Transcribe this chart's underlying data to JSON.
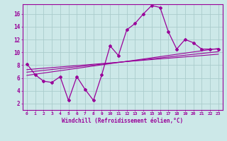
{
  "xlabel": "Windchill (Refroidissement éolien,°C)",
  "bg_color": "#cce8e8",
  "grid_color": "#aacccc",
  "line_color": "#990099",
  "xlim": [
    -0.5,
    23.5
  ],
  "ylim": [
    1,
    17.5
  ],
  "yticks": [
    2,
    4,
    6,
    8,
    10,
    12,
    14,
    16
  ],
  "xticks": [
    0,
    1,
    2,
    3,
    4,
    5,
    6,
    7,
    8,
    9,
    10,
    11,
    12,
    13,
    14,
    15,
    16,
    17,
    18,
    19,
    20,
    21,
    22,
    23
  ],
  "main_line_x": [
    0,
    1,
    2,
    3,
    4,
    5,
    6,
    7,
    8,
    9,
    10,
    11,
    12,
    13,
    14,
    15,
    16,
    17,
    18,
    19,
    20,
    21,
    22,
    23
  ],
  "main_line_y": [
    8.2,
    6.5,
    5.5,
    5.3,
    6.2,
    2.5,
    6.2,
    4.2,
    2.5,
    6.5,
    11.0,
    9.5,
    13.5,
    14.5,
    16.0,
    17.3,
    17.0,
    13.2,
    10.5,
    12.0,
    11.5,
    10.5,
    10.5,
    10.5
  ],
  "line2_x": [
    0,
    23
  ],
  "line2_y": [
    6.4,
    10.6
  ],
  "line3_x": [
    0,
    23
  ],
  "line3_y": [
    6.9,
    10.1
  ],
  "line4_x": [
    0,
    23
  ],
  "line4_y": [
    7.3,
    9.7
  ]
}
